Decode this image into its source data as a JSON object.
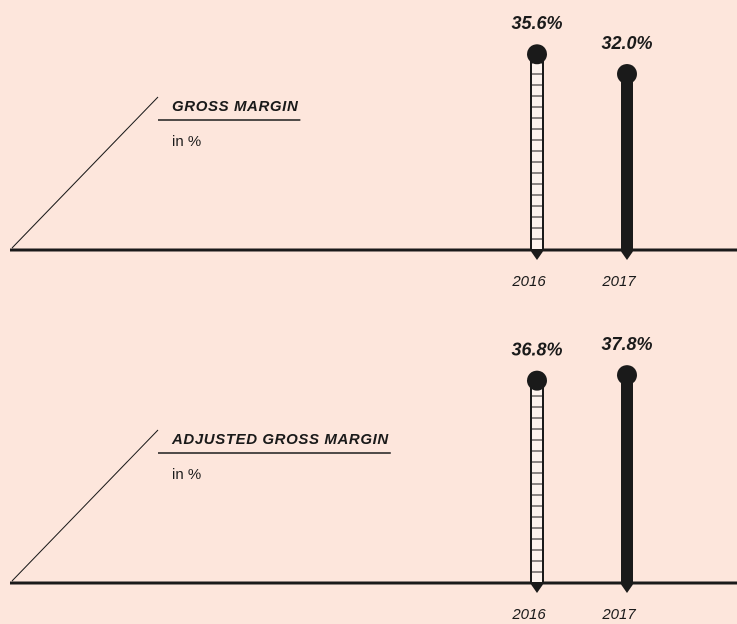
{
  "chart_data": [
    {
      "type": "lollipop",
      "title": "GROSS MARGIN",
      "subtitle": "in %",
      "categories": [
        "2016",
        "2017"
      ],
      "values": [
        35.6,
        32.0
      ],
      "value_labels": [
        "35.6%",
        "32.0%"
      ]
    },
    {
      "type": "lollipop",
      "title": "ADJUSTED GROSS MARGIN",
      "subtitle": "in %",
      "categories": [
        "2016",
        "2017"
      ],
      "values": [
        36.8,
        37.8
      ],
      "value_labels": [
        "36.8%",
        "37.8%"
      ]
    }
  ]
}
